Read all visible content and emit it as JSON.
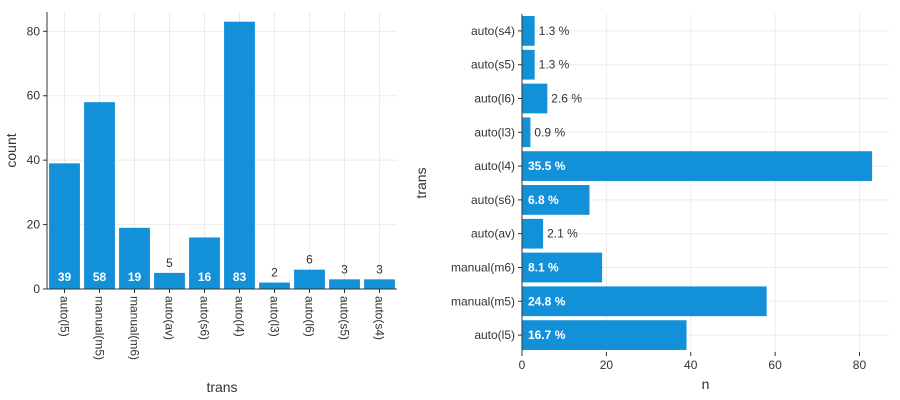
{
  "colors": {
    "bar": "#1290d8",
    "grid": "#ebebeb",
    "axis": "#333333"
  },
  "chart_data": [
    {
      "type": "bar",
      "orientation": "vertical",
      "categories": [
        "auto(l5)",
        "manual(m5)",
        "manual(m6)",
        "auto(av)",
        "auto(s6)",
        "auto(l4)",
        "auto(l3)",
        "auto(l6)",
        "auto(s5)",
        "auto(s4)"
      ],
      "values": [
        39,
        58,
        19,
        5,
        16,
        83,
        2,
        6,
        3,
        3
      ],
      "data_labels": [
        "39",
        "58",
        "19",
        "5",
        "16",
        "83",
        "2",
        "6",
        "3",
        "3"
      ],
      "xlabel": "trans",
      "ylabel": "count",
      "ylim": [
        0,
        86
      ],
      "yticks": [
        0,
        20,
        40,
        60,
        80
      ],
      "grid": true
    },
    {
      "type": "bar",
      "orientation": "horizontal",
      "categories": [
        "auto(s4)",
        "auto(s5)",
        "auto(l6)",
        "auto(l3)",
        "auto(l4)",
        "auto(s6)",
        "auto(av)",
        "manual(m6)",
        "manual(m5)",
        "auto(l5)"
      ],
      "values": [
        3,
        3,
        6,
        2,
        83,
        16,
        5,
        19,
        58,
        39
      ],
      "data_labels": [
        "1.3 %",
        "1.3 %",
        "2.6 %",
        "0.9 %",
        "35.5 %",
        "6.8 %",
        "2.1 %",
        "8.1 %",
        "24.8 %",
        "16.7 %"
      ],
      "xlabel": "n",
      "ylabel": "trans",
      "xlim": [
        0,
        87
      ],
      "xticks": [
        0,
        20,
        40,
        60,
        80
      ],
      "grid": true
    }
  ]
}
